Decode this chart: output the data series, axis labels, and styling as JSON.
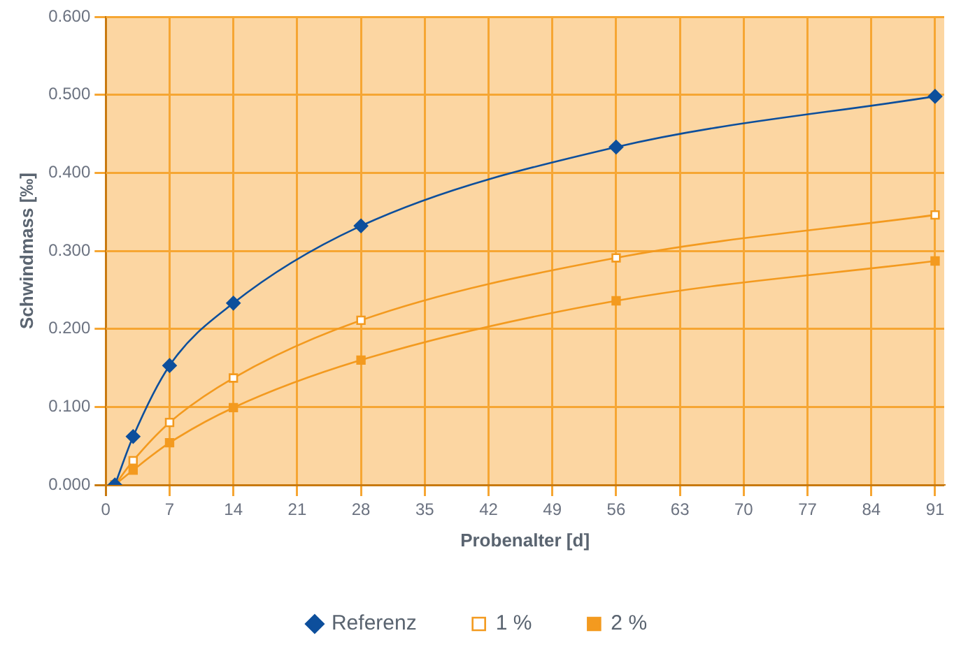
{
  "chart_data": {
    "type": "line",
    "xlabel": "Probenalter [d]",
    "ylabel": "Schwindmass [‰]",
    "x": [
      1,
      3,
      7,
      14,
      28,
      56,
      91
    ],
    "series": [
      {
        "name": "Referenz",
        "color": "#0d4f9c",
        "marker": "diamond",
        "values": [
          0,
          0.062,
          0.153,
          0.233,
          0.332,
          0.433,
          0.498
        ]
      },
      {
        "name": "1 %",
        "color": "#f39a1f",
        "marker": "square",
        "values": [
          0,
          0.031,
          0.08,
          0.137,
          0.211,
          0.291,
          0.346
        ]
      },
      {
        "name": "2 %",
        "color": "#f39a1f",
        "marker": "square",
        "values": [
          0,
          0.019,
          0.054,
          0.099,
          0.16,
          0.236,
          0.287
        ]
      }
    ],
    "xlim": [
      0,
      92
    ],
    "xticks": [
      0,
      7,
      14,
      21,
      28,
      35,
      42,
      49,
      56,
      63,
      70,
      77,
      84,
      91
    ],
    "ylim": [
      0,
      0.6
    ],
    "yticks": [
      {
        "value": 0,
        "label": "0.000"
      },
      {
        "value": 0.1,
        "label": "0.100"
      },
      {
        "value": 0.2,
        "label": "0.200"
      },
      {
        "value": 0.3,
        "label": "0.300"
      },
      {
        "value": 0.4,
        "label": "0.400"
      },
      {
        "value": 0.5,
        "label": "0.500"
      },
      {
        "value": 0.6,
        "label": "0.600"
      }
    ],
    "grid": true,
    "legend": "bottom"
  }
}
